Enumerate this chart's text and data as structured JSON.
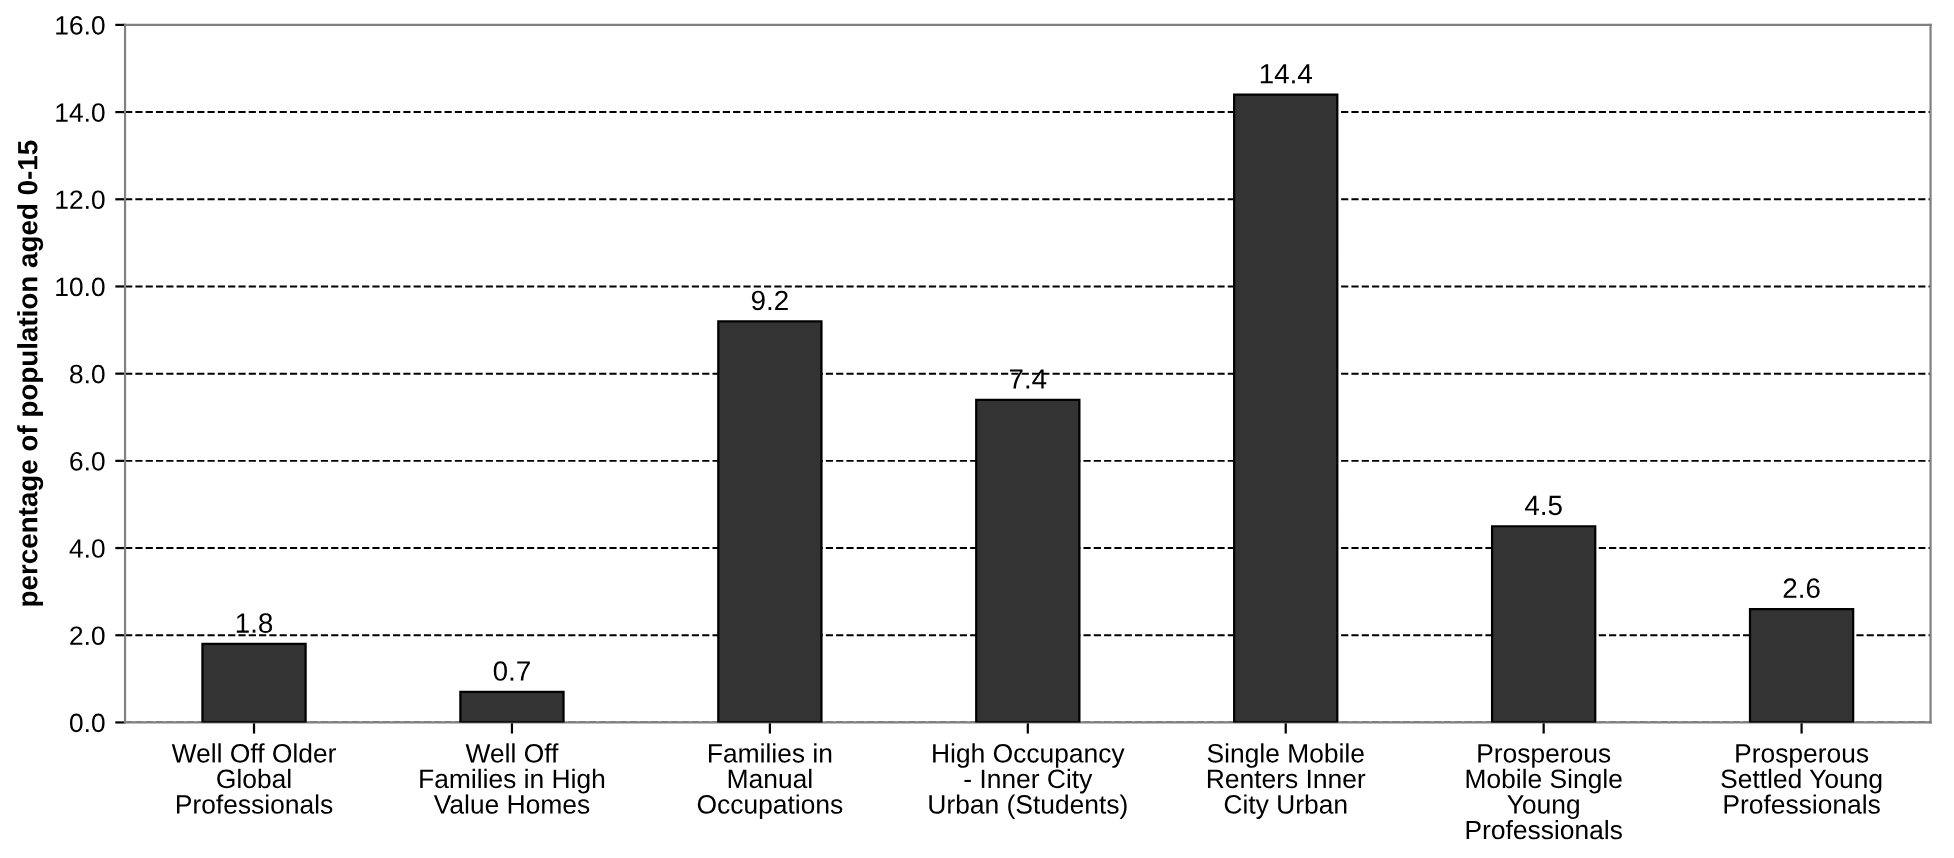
{
  "chart_data": {
    "type": "bar",
    "ylabel": "percentage of population aged 0-15",
    "categories": [
      "Well Off Older\nGlobal\nProfessionals",
      "Well Off\nFamilies in High\nValue Homes",
      "Families in\nManual\nOccupations",
      "High Occupancy\n- Inner City\nUrban (Students)",
      "Single Mobile\nRenters Inner\nCity Urban",
      "Prosperous\nMobile Single\nYoung\nProfessionals",
      "Prosperous\nSettled Young\nProfessionals"
    ],
    "values": [
      1.8,
      0.7,
      9.2,
      7.4,
      14.4,
      4.5,
      2.6
    ],
    "color": "#333333",
    "data_labels": true,
    "grid": "y",
    "line_style": "dashed",
    "ylim": [
      0,
      16
    ],
    "yticks": [
      {
        "value": 0,
        "label": "0.0"
      },
      {
        "value": 2,
        "label": "2.0"
      },
      {
        "value": 4,
        "label": "4.0"
      },
      {
        "value": 6,
        "label": "6.0"
      },
      {
        "value": 8,
        "label": "8.0"
      },
      {
        "value": 10,
        "label": "10.0"
      },
      {
        "value": 12,
        "label": "12.0"
      },
      {
        "value": 14,
        "label": "14.0"
      },
      {
        "value": 16,
        "label": "16.0"
      }
    ]
  }
}
